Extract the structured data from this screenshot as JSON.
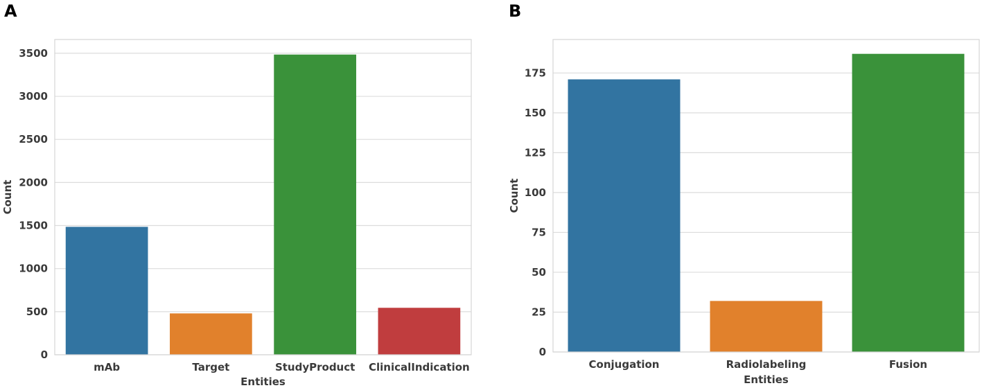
{
  "chart_data": [
    {
      "panel": "A",
      "type": "bar",
      "categories": [
        "mAb",
        "Target",
        "StudyProduct",
        "ClinicalIndication"
      ],
      "values": [
        1485,
        480,
        3485,
        545
      ],
      "colors": [
        "#3274a1",
        "#e1812c",
        "#3a923a",
        "#c03d3e"
      ],
      "title": "",
      "xlabel": "Entities",
      "ylabel": "Count",
      "ylim": [
        0,
        3660
      ],
      "yticks": [
        0,
        500,
        1000,
        1500,
        2000,
        2500,
        3000,
        3500
      ],
      "grid": true
    },
    {
      "panel": "B",
      "type": "bar",
      "categories": [
        "Conjugation",
        "Radiolabeling",
        "Fusion"
      ],
      "values": [
        171,
        32,
        187
      ],
      "colors": [
        "#3274a1",
        "#e1812c",
        "#3a923a"
      ],
      "title": "",
      "xlabel": "Entities",
      "ylabel": "Count",
      "ylim": [
        0,
        196
      ],
      "yticks": [
        0,
        25,
        50,
        75,
        100,
        125,
        150,
        175
      ],
      "grid": true
    }
  ]
}
